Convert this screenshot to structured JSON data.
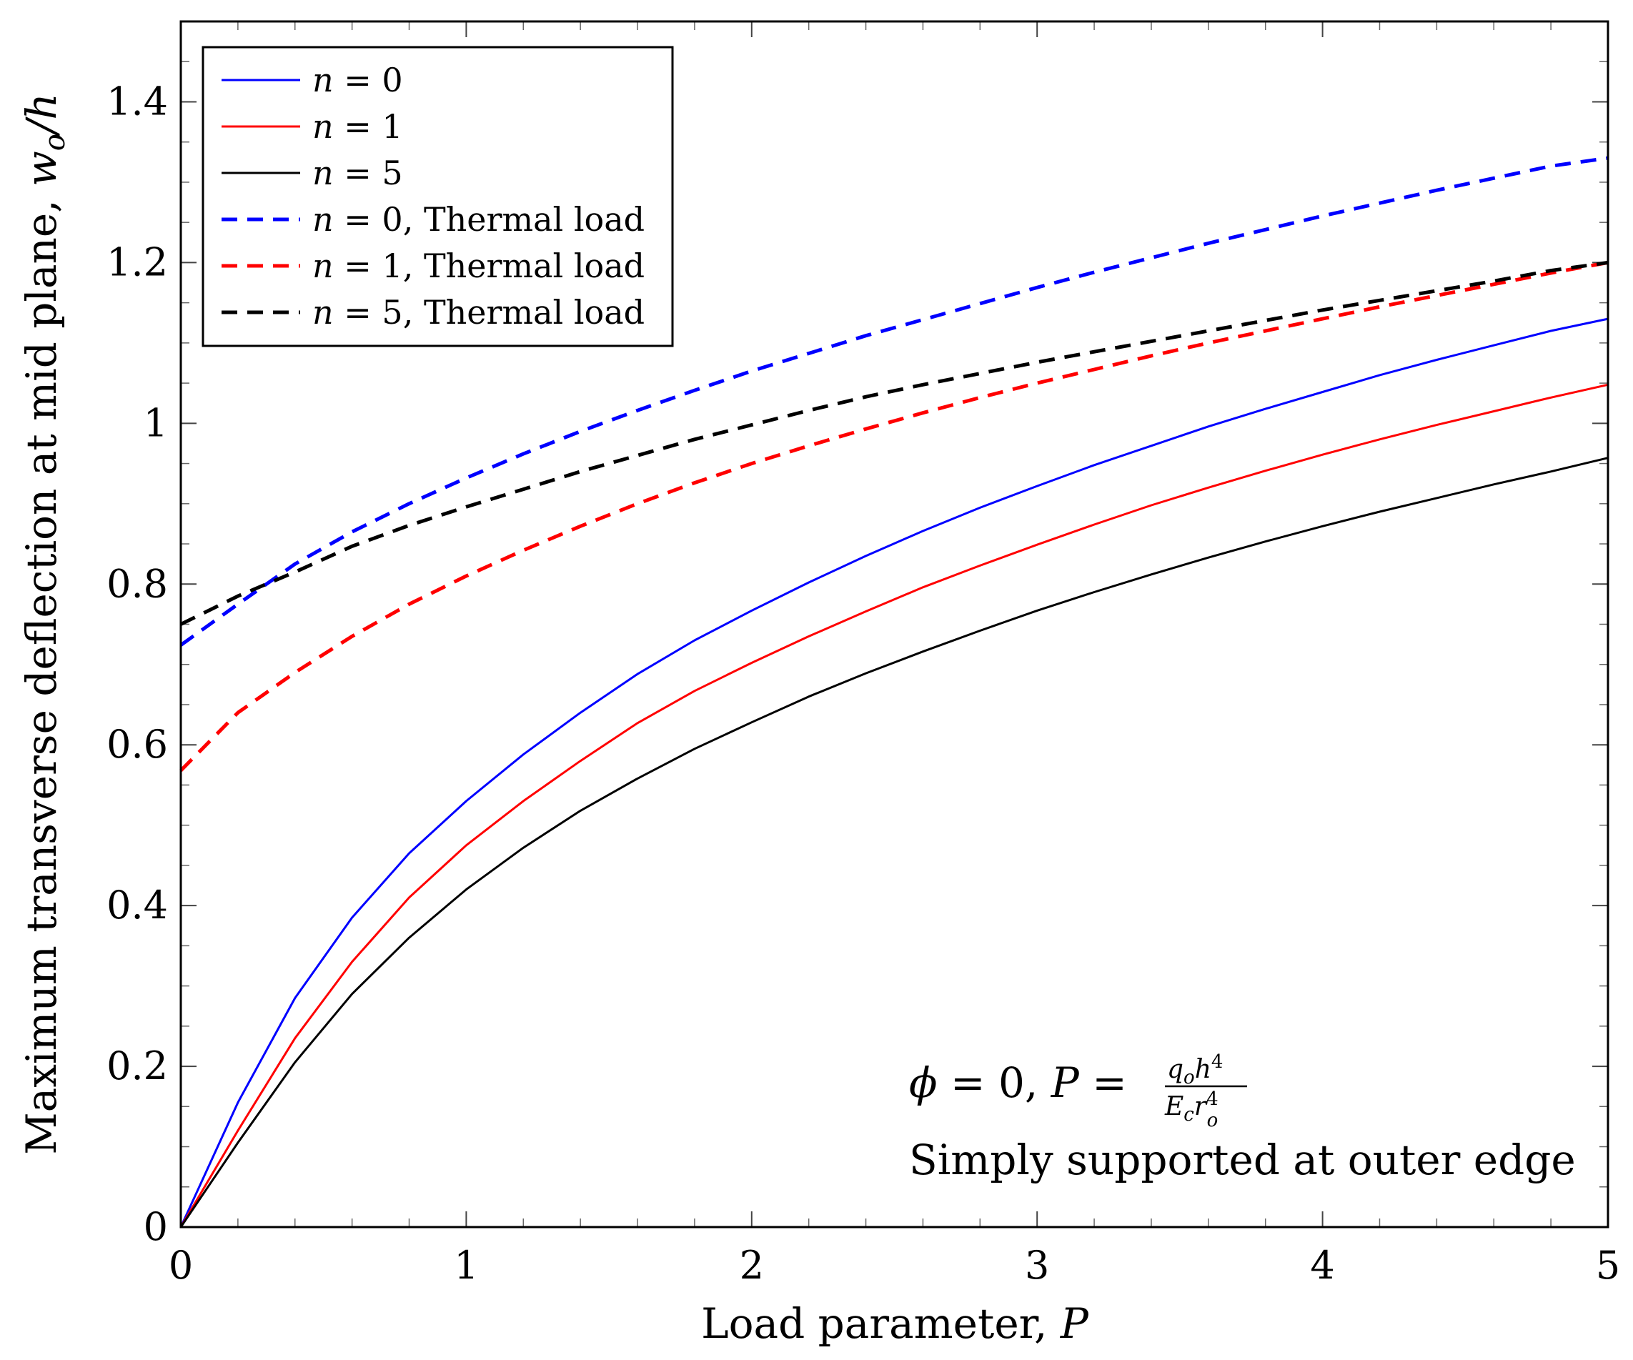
{
  "chart_data": {
    "type": "line",
    "title": "",
    "xlabel": {
      "text": "Load parameter, ",
      "var": "P"
    },
    "ylabel": {
      "text": "Maximum transverse deflection at mid plane, ",
      "var": "w",
      "sub": "o",
      "tail": "/h"
    },
    "xlim": [
      0,
      5
    ],
    "ylim": [
      0,
      1.5
    ],
    "x_ticks": [
      0,
      1,
      2,
      3,
      4,
      5
    ],
    "x_tick_labels": [
      "0",
      "1",
      "2",
      "3",
      "4",
      "5"
    ],
    "y_ticks": [
      0,
      0.2,
      0.4,
      0.6,
      0.8,
      1.0,
      1.2,
      1.4
    ],
    "y_tick_labels": [
      "0",
      "0.2",
      "0.4",
      "0.6",
      "0.8",
      "1",
      "1.2",
      "1.4"
    ],
    "grid": false,
    "legend_position": "top-left",
    "x": [
      0,
      0.2,
      0.4,
      0.6,
      0.8,
      1.0,
      1.2,
      1.4,
      1.6,
      1.8,
      2.0,
      2.2,
      2.4,
      2.6,
      2.8,
      3.0,
      3.2,
      3.4,
      3.6,
      3.8,
      4.0,
      4.2,
      4.4,
      4.6,
      4.8,
      5.0
    ],
    "series": [
      {
        "name": "n = 0",
        "var": "n",
        "eq": " = 0",
        "suffix": "",
        "color": "#0000ff",
        "dash": "solid",
        "values": [
          0,
          0.155,
          0.285,
          0.385,
          0.465,
          0.53,
          0.588,
          0.64,
          0.688,
          0.73,
          0.767,
          0.802,
          0.835,
          0.866,
          0.895,
          0.922,
          0.948,
          0.972,
          0.996,
          1.018,
          1.039,
          1.06,
          1.079,
          1.097,
          1.115,
          1.13
        ]
      },
      {
        "name": "n = 1",
        "var": "n",
        "eq": " = 1",
        "suffix": "",
        "color": "#ff0000",
        "dash": "solid",
        "values": [
          0,
          0.12,
          0.235,
          0.33,
          0.41,
          0.475,
          0.53,
          0.58,
          0.627,
          0.667,
          0.702,
          0.735,
          0.766,
          0.796,
          0.823,
          0.849,
          0.874,
          0.898,
          0.92,
          0.941,
          0.961,
          0.98,
          0.998,
          1.015,
          1.032,
          1.048
        ]
      },
      {
        "name": "n = 5",
        "var": "n",
        "eq": " = 5",
        "suffix": "",
        "color": "#000000",
        "dash": "solid",
        "values": [
          0,
          0.105,
          0.205,
          0.29,
          0.36,
          0.42,
          0.472,
          0.518,
          0.558,
          0.595,
          0.628,
          0.66,
          0.689,
          0.716,
          0.742,
          0.767,
          0.79,
          0.812,
          0.833,
          0.853,
          0.872,
          0.89,
          0.907,
          0.924,
          0.94,
          0.957
        ]
      },
      {
        "name": "n = 0, Thermal load",
        "var": "n",
        "eq": " = 0",
        "suffix": ", Thermal load",
        "color": "#0000ff",
        "dash": "dashed",
        "values": [
          0.724,
          0.775,
          0.825,
          0.865,
          0.9,
          0.932,
          0.962,
          0.99,
          1.016,
          1.041,
          1.065,
          1.087,
          1.109,
          1.129,
          1.149,
          1.169,
          1.188,
          1.206,
          1.224,
          1.241,
          1.258,
          1.274,
          1.29,
          1.305,
          1.32,
          1.33
        ]
      },
      {
        "name": "n = 1, Thermal load",
        "var": "n",
        "eq": " = 1",
        "suffix": ", Thermal load",
        "color": "#ff0000",
        "dash": "dashed",
        "values": [
          0.568,
          0.64,
          0.69,
          0.735,
          0.775,
          0.81,
          0.842,
          0.872,
          0.9,
          0.926,
          0.95,
          0.972,
          0.993,
          1.013,
          1.032,
          1.05,
          1.067,
          1.084,
          1.1,
          1.115,
          1.13,
          1.145,
          1.159,
          1.173,
          1.187,
          1.2
        ]
      },
      {
        "name": "n = 5, Thermal load",
        "var": "n",
        "eq": " = 5",
        "suffix": ", Thermal load",
        "color": "#000000",
        "dash": "dashed",
        "values": [
          0.75,
          0.785,
          0.815,
          0.847,
          0.873,
          0.896,
          0.918,
          0.94,
          0.96,
          0.98,
          0.998,
          1.016,
          1.033,
          1.048,
          1.062,
          1.076,
          1.089,
          1.102,
          1.115,
          1.128,
          1.141,
          1.153,
          1.165,
          1.177,
          1.19,
          1.2
        ]
      }
    ],
    "annotations": {
      "line1": {
        "phi": "ϕ",
        "eq1": " = 0, ",
        "P": "P",
        "eq2": " = ",
        "num_q": "q",
        "num_o": "o",
        "num_h": "h",
        "num_4": "4",
        "den_E": "E",
        "den_c": "c",
        "den_r": "r",
        "den_o": "o",
        "den_4": "4"
      },
      "line2": "Simply supported at outer edge"
    }
  }
}
